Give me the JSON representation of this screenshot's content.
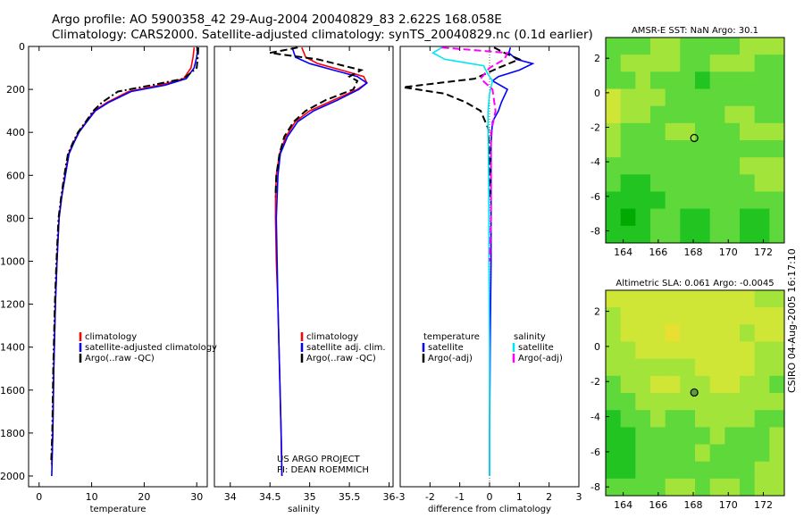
{
  "header": {
    "line1": "Argo profile: AO 5900358_42 29-Aug-2004 20040829_83 2.622S 168.058E",
    "line2": "Climatology: CARS2000. Satellite-adjusted climatology: synTS_20040829.nc (0.1d earlier)"
  },
  "stamp": "CSIRO 04-Aug-2005 16:17:10",
  "colors": {
    "climatology": "#ff0000",
    "satellite": "#0000ff",
    "argo": "#000000",
    "sal_satellite": "#00e5ee",
    "sal_argo": "#ff00ff"
  },
  "chart_data": [
    {
      "type": "line",
      "name": "temperature-profile",
      "xlabel": "temperature",
      "ylabel": "",
      "xlim": [
        -2,
        32
      ],
      "ylim": [
        2050,
        0
      ],
      "xticks": [
        0,
        10,
        20,
        30
      ],
      "yticks": [
        0,
        200,
        400,
        600,
        800,
        1000,
        1200,
        1400,
        1600,
        1800,
        2000
      ],
      "legend": [
        "climatology",
        "satellite-adjusted climatology",
        "Argo(..raw -QC)"
      ],
      "legend_position": "center-right",
      "series": [
        {
          "name": "climatology",
          "color": "#ff0000",
          "style": "solid",
          "x": [
            29.5,
            29.3,
            28.9,
            27.5,
            23.0,
            17.0,
            13.0,
            10.5,
            9.0,
            7.5,
            6.5,
            5.6,
            4.9,
            4.3,
            3.8,
            3.4,
            3.1,
            2.8,
            2.6,
            2.4
          ],
          "y": [
            5,
            50,
            100,
            150,
            180,
            210,
            260,
            300,
            350,
            400,
            450,
            500,
            600,
            700,
            800,
            1000,
            1200,
            1500,
            1800,
            1950
          ]
        },
        {
          "name": "satellite-adjusted climatology",
          "color": "#0000ff",
          "style": "solid",
          "x": [
            30.2,
            30.0,
            29.5,
            28.0,
            24.0,
            17.5,
            13.3,
            10.7,
            9.1,
            7.6,
            6.6,
            5.7,
            5.0,
            4.3,
            3.8,
            3.4,
            3.1,
            2.8,
            2.6,
            2.4
          ],
          "y": [
            5,
            50,
            100,
            150,
            180,
            210,
            260,
            300,
            350,
            400,
            450,
            500,
            600,
            700,
            800,
            1000,
            1200,
            1500,
            1800,
            2000
          ]
        },
        {
          "name": "Argo(..raw -QC)",
          "color": "#000000",
          "style": "dashdot",
          "x": [
            30.3,
            30.2,
            30.0,
            27.5,
            21.5,
            15.0,
            12.0,
            10.3,
            8.9,
            7.4,
            6.4,
            5.5,
            4.8,
            4.2,
            3.7,
            3.3,
            3.0,
            2.7,
            2.5,
            2.3
          ],
          "y": [
            5,
            50,
            100,
            150,
            180,
            210,
            260,
            300,
            350,
            400,
            450,
            500,
            600,
            700,
            800,
            1000,
            1200,
            1500,
            1800,
            1940
          ]
        }
      ]
    },
    {
      "type": "line",
      "name": "salinity-profile",
      "xlabel": "salinity",
      "ylabel": "",
      "xlim": [
        33.8,
        36.05
      ],
      "ylim": [
        2050,
        0
      ],
      "xticks": [
        34,
        34.5,
        35,
        35.5,
        36
      ],
      "yticks": [],
      "legend": [
        "climatology",
        "satellite adj. clim.",
        "Argo(..raw -QC)"
      ],
      "legend_position": "center-right",
      "annotation": [
        "US ARGO PROJECT",
        "PI: DEAN ROEMMICH"
      ],
      "series": [
        {
          "name": "climatology",
          "color": "#ff0000",
          "style": "solid",
          "x": [
            34.9,
            34.95,
            35.1,
            35.4,
            35.68,
            35.72,
            35.6,
            35.3,
            35.0,
            34.82,
            34.7,
            34.62,
            34.58,
            34.57,
            34.57,
            34.58,
            34.6,
            34.62,
            34.64,
            34.65
          ],
          "y": [
            5,
            50,
            80,
            110,
            140,
            170,
            200,
            250,
            300,
            350,
            420,
            500,
            600,
            700,
            800,
            1000,
            1200,
            1500,
            1800,
            2000
          ]
        },
        {
          "name": "satellite adj. clim.",
          "color": "#0000ff",
          "style": "solid",
          "x": [
            34.78,
            34.82,
            35.0,
            35.3,
            35.6,
            35.72,
            35.62,
            35.35,
            35.05,
            34.85,
            34.72,
            34.63,
            34.6,
            34.59,
            34.58,
            34.59,
            34.6,
            34.62,
            34.64,
            34.65
          ],
          "y": [
            5,
            50,
            80,
            110,
            140,
            170,
            200,
            250,
            300,
            350,
            420,
            500,
            600,
            700,
            800,
            1000,
            1200,
            1500,
            1800,
            2000
          ]
        },
        {
          "name": "Argo(..raw -QC)",
          "color": "#000000",
          "style": "dashed",
          "x": [
            34.85,
            34.5,
            35.1,
            35.65,
            35.5,
            35.6,
            35.55,
            35.2,
            34.95,
            34.8,
            34.68,
            34.62,
            34.58,
            34.57
          ],
          "y": [
            5,
            30,
            60,
            110,
            140,
            160,
            200,
            250,
            300,
            350,
            420,
            500,
            600,
            700
          ]
        }
      ]
    },
    {
      "type": "line",
      "name": "difference-profile",
      "xlabel": "difference from climatology",
      "ylabel": "",
      "xlim": [
        -3,
        3
      ],
      "ylim": [
        2050,
        0
      ],
      "xticks": [
        -3,
        -2,
        -1,
        0,
        1,
        2,
        3
      ],
      "yticks": [],
      "legend": {
        "temperature": [
          "temperature",
          "satellite",
          "Argo(-adj)"
        ],
        "salinity": [
          "salinity",
          "satellite",
          "Argo(-adj)"
        ]
      },
      "legend_position": "center",
      "series": [
        {
          "name": "temperature satellite",
          "color": "#0000ff",
          "style": "solid",
          "x": [
            0.7,
            0.65,
            0.9,
            1.45,
            1.0,
            0.3,
            0.1,
            0.6,
            0.4,
            0.3,
            0.1,
            0.05,
            0.05,
            0.05,
            0.05,
            0.02,
            0.0,
            0.0
          ],
          "y": [
            5,
            30,
            60,
            80,
            110,
            140,
            160,
            200,
            260,
            300,
            350,
            450,
            600,
            800,
            1000,
            1400,
            1800,
            2000
          ]
        },
        {
          "name": "temperature Argo(-adj)",
          "color": "#000000",
          "style": "dashed",
          "x": [
            0.15,
            0.5,
            1.0,
            0.3,
            -0.5,
            -2.9,
            -1.5,
            -0.8,
            -0.3,
            -0.05,
            0.0,
            0.0
          ],
          "y": [
            5,
            30,
            60,
            100,
            150,
            190,
            220,
            260,
            300,
            380,
            500,
            700
          ]
        },
        {
          "name": "salinity satellite",
          "color": "#00e5ee",
          "style": "solid",
          "x": [
            -1.6,
            -1.9,
            -1.5,
            -0.2,
            -0.05,
            0.1,
            0.0,
            -0.05,
            -0.05,
            -0.03,
            -0.02,
            -0.02,
            0.0,
            0.0,
            0.0
          ],
          "y": [
            5,
            30,
            60,
            90,
            130,
            160,
            220,
            300,
            400,
            600,
            800,
            1000,
            1400,
            1800,
            2000
          ]
        },
        {
          "name": "salinity Argo(-adj)",
          "color": "#ff00ff",
          "style": "dashed",
          "x": [
            -1.6,
            0.6,
            0.5,
            0.0,
            -0.3,
            0.1,
            0.2,
            0.05,
            0.05,
            0.05,
            0.0
          ],
          "y": [
            5,
            30,
            60,
            100,
            150,
            200,
            300,
            400,
            600,
            800,
            1000
          ]
        }
      ]
    },
    {
      "type": "heatmap",
      "name": "sst-map",
      "title": "AMSR-E SST: NaN Argo: 30.1",
      "xlim": [
        163,
        173.2
      ],
      "ylim": [
        -8.7,
        3.2
      ],
      "xticks": [
        164,
        166,
        168,
        170,
        172
      ],
      "yticks": [
        2,
        0,
        -2,
        -4,
        -6,
        -8
      ],
      "colormap": [
        "#00aa00",
        "#22c422",
        "#5ed83a",
        "#a2e43a",
        "#cfe637",
        "#e9df33",
        "#f2c726",
        "#f4b225",
        "#f29c26"
      ],
      "values": [
        [
          2,
          2,
          2,
          3,
          3,
          2,
          2,
          2,
          2,
          3,
          3,
          3
        ],
        [
          2,
          3,
          3,
          3,
          3,
          2,
          2,
          3,
          3,
          3,
          2,
          2
        ],
        [
          2,
          2,
          3,
          2,
          2,
          2,
          1,
          2,
          2,
          2,
          2,
          2
        ],
        [
          4,
          3,
          3,
          3,
          2,
          2,
          2,
          2,
          2,
          2,
          2,
          2
        ],
        [
          4,
          3,
          3,
          2,
          2,
          2,
          2,
          2,
          3,
          3,
          2,
          2
        ],
        [
          3,
          2,
          2,
          2,
          3,
          3,
          2,
          2,
          2,
          3,
          3,
          3
        ],
        [
          3,
          2,
          2,
          2,
          2,
          2,
          2,
          2,
          2,
          2,
          2,
          2
        ],
        [
          2,
          2,
          2,
          2,
          2,
          2,
          2,
          2,
          2,
          3,
          3,
          3
        ],
        [
          2,
          1,
          1,
          2,
          2,
          2,
          2,
          2,
          2,
          2,
          3,
          3
        ],
        [
          1,
          1,
          1,
          1,
          2,
          2,
          2,
          2,
          2,
          2,
          2,
          2
        ],
        [
          1,
          0,
          1,
          2,
          2,
          1,
          1,
          2,
          2,
          1,
          1,
          2
        ],
        [
          1,
          1,
          1,
          2,
          2,
          1,
          1,
          2,
          2,
          1,
          1,
          2
        ]
      ],
      "marker": {
        "lon": 168.058,
        "lat": -2.622
      }
    },
    {
      "type": "heatmap",
      "name": "sla-map",
      "title": "Altimetric SLA: 0.061 Argo: -0.0045",
      "xlim": [
        163,
        173.2
      ],
      "ylim": [
        -8.5,
        3.2
      ],
      "xticks": [
        164,
        166,
        168,
        170,
        172
      ],
      "yticks": [
        2,
        0,
        -2,
        -4,
        -6,
        -8
      ],
      "colormap": [
        "#00aa00",
        "#22c422",
        "#5ed83a",
        "#a2e43a",
        "#cfe637",
        "#e9df33",
        "#f2c726",
        "#f4b225",
        "#f29c26"
      ],
      "values": [
        [
          4,
          4,
          4,
          4,
          4,
          4,
          4,
          4,
          4,
          4,
          3,
          3
        ],
        [
          3,
          4,
          4,
          4,
          4,
          4,
          4,
          4,
          4,
          4,
          4,
          4
        ],
        [
          3,
          4,
          4,
          4,
          5,
          4,
          4,
          4,
          4,
          3,
          4,
          4
        ],
        [
          3,
          3,
          4,
          4,
          4,
          4,
          4,
          4,
          4,
          4,
          3,
          3
        ],
        [
          3,
          3,
          3,
          3,
          3,
          3,
          4,
          4,
          4,
          4,
          3,
          3
        ],
        [
          2,
          3,
          3,
          4,
          4,
          3,
          3,
          4,
          4,
          3,
          3,
          2
        ],
        [
          2,
          2,
          3,
          3,
          3,
          3,
          3,
          3,
          3,
          3,
          3,
          3
        ],
        [
          1,
          2,
          2,
          3,
          2,
          2,
          3,
          3,
          3,
          3,
          2,
          2
        ],
        [
          1,
          1,
          2,
          2,
          2,
          2,
          2,
          3,
          2,
          2,
          2,
          3
        ],
        [
          1,
          1,
          2,
          2,
          2,
          2,
          3,
          2,
          2,
          2,
          2,
          3
        ],
        [
          1,
          1,
          2,
          2,
          2,
          2,
          2,
          2,
          2,
          2,
          3,
          3
        ],
        [
          2,
          2,
          2,
          2,
          3,
          3,
          2,
          3,
          3,
          2,
          3,
          3
        ]
      ],
      "marker": {
        "lon": 168.058,
        "lat": -2.622
      }
    }
  ]
}
